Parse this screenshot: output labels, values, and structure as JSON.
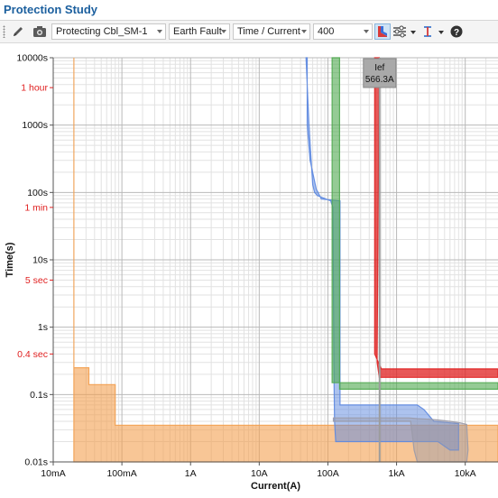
{
  "window": {
    "title": "Protection Study"
  },
  "toolbar": {
    "device_select": "Protecting Cbl_SM-1",
    "fault_type": "Earth Fault",
    "plot_type": "Time / Current",
    "voltage": "400"
  },
  "icons": {
    "grip": "drag-grip-icon",
    "pencil": "pencil-icon",
    "camera": "camera-icon",
    "curve_style": "curve-style-icon",
    "settings": "settings-sliders-icon",
    "cursor": "cursor-marker-icon",
    "help": "help-icon"
  },
  "chart_data": {
    "type": "line",
    "xlabel": "Current(A)",
    "ylabel": "Time(s)",
    "x_scale": "log",
    "y_scale": "log",
    "xlim": [
      0.01,
      30000
    ],
    "ylim": [
      0.01,
      10000
    ],
    "grid": true,
    "x_ticks": [
      {
        "value": 0.01,
        "label": "10mA"
      },
      {
        "value": 0.1,
        "label": "100mA"
      },
      {
        "value": 1,
        "label": "1A"
      },
      {
        "value": 10,
        "label": "10A"
      },
      {
        "value": 100,
        "label": "100A"
      },
      {
        "value": 1000,
        "label": "1kA"
      },
      {
        "value": 10000,
        "label": "10kA"
      }
    ],
    "y_ticks": [
      {
        "value": 10000,
        "label": "10000s"
      },
      {
        "value": 1000,
        "label": "1000s"
      },
      {
        "value": 100,
        "label": "100s"
      },
      {
        "value": 10,
        "label": "10s"
      },
      {
        "value": 1,
        "label": "1s"
      },
      {
        "value": 0.1,
        "label": "0.1s"
      },
      {
        "value": 0.01,
        "label": "0.01s"
      }
    ],
    "y_markers": [
      {
        "value": 3600,
        "label": "1 hour",
        "color": "#e02020"
      },
      {
        "value": 60,
        "label": "1 min",
        "color": "#e02020"
      },
      {
        "value": 5,
        "label": "5 sec",
        "color": "#e02020"
      },
      {
        "value": 0.4,
        "label": "0.4 sec",
        "color": "#e02020"
      }
    ],
    "cursor": {
      "value": 566.3,
      "label": "Ief",
      "value_label": "566.3A"
    },
    "series": [
      {
        "color": "#f3a050",
        "fill_opacity": 0.6,
        "points": [
          [
            0.02,
            10000
          ],
          [
            0.02,
            0.25
          ],
          [
            0.033,
            0.25
          ],
          [
            0.033,
            0.14
          ],
          [
            0.08,
            0.14
          ],
          [
            0.08,
            0.035
          ],
          [
            30000,
            0.035
          ],
          [
            30000,
            0.01
          ],
          [
            0.02,
            0.01
          ]
        ]
      },
      {
        "color": "#5b87e0",
        "fill_opacity": 0.5,
        "points": [
          [
            50,
            10000
          ],
          [
            50,
            1000
          ],
          [
            55,
            300
          ],
          [
            68,
            110
          ],
          [
            72,
            100
          ],
          [
            80,
            80
          ],
          [
            150,
            75
          ],
          [
            150,
            10
          ],
          [
            150,
            1
          ],
          [
            150,
            0.07
          ],
          [
            2000,
            0.07
          ],
          [
            2500,
            0.06
          ],
          [
            3500,
            0.04
          ],
          [
            6000,
            0.038
          ],
          [
            8000,
            0.037
          ],
          [
            8000,
            0.015
          ],
          [
            6000,
            0.015
          ],
          [
            4000,
            0.02
          ],
          [
            1000,
            0.02
          ],
          [
            130,
            0.02
          ],
          [
            125,
            0.04
          ],
          [
            122,
            0.3
          ],
          [
            120,
            5
          ],
          [
            118,
            60
          ],
          [
            110,
            75
          ],
          [
            70,
            90
          ],
          [
            64,
            100
          ],
          [
            60,
            130
          ],
          [
            57,
            300
          ],
          [
            53,
            1000
          ],
          [
            48,
            10000
          ]
        ]
      },
      {
        "color": "#4fa84f",
        "fill_opacity": 0.6,
        "points": [
          [
            115,
            10000
          ],
          [
            115,
            0.15
          ],
          [
            30000,
            0.15
          ],
          [
            30000,
            0.12
          ],
          [
            148,
            0.12
          ],
          [
            148,
            10000
          ]
        ]
      },
      {
        "color": "#e02020",
        "fill_opacity": 0.75,
        "points": [
          [
            480,
            10000
          ],
          [
            480,
            0.4
          ],
          [
            600,
            0.24
          ],
          [
            30000,
            0.24
          ],
          [
            30000,
            0.18
          ],
          [
            560,
            0.18
          ],
          [
            520,
            0.3
          ],
          [
            560,
            10000
          ]
        ]
      },
      {
        "color": "#9a9aa8",
        "fill_opacity": 0.45,
        "points": [
          [
            120,
            0.045
          ],
          [
            1500,
            0.045
          ],
          [
            2000,
            0.044
          ],
          [
            3000,
            0.043
          ],
          [
            4000,
            0.042
          ],
          [
            6000,
            0.04
          ],
          [
            8500,
            0.038
          ],
          [
            10500,
            0.036
          ],
          [
            11000,
            0.015
          ],
          [
            10500,
            0.01
          ],
          [
            2000,
            0.01
          ],
          [
            1800,
            0.015
          ],
          [
            1700,
            0.025
          ],
          [
            1600,
            0.04
          ],
          [
            120,
            0.04
          ]
        ]
      }
    ]
  }
}
